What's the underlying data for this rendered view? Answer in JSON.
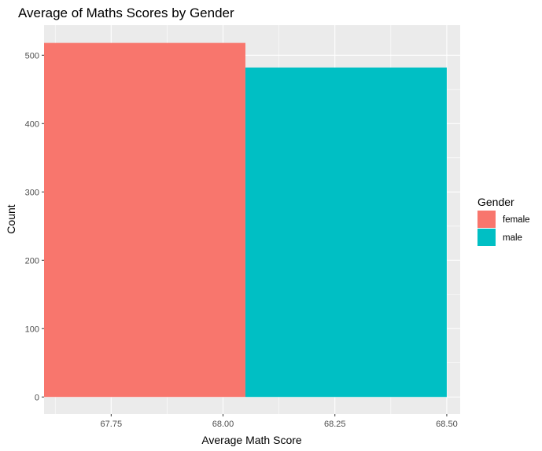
{
  "chart_data": {
    "type": "bar",
    "title": "Average of Maths Scores by Gender",
    "xlabel": "Average Math Score",
    "ylabel": "Count",
    "xlim": [
      67.6,
      68.53
    ],
    "ylim": [
      -25,
      544
    ],
    "x_ticks": [
      {
        "value": 67.75,
        "label": "67.75"
      },
      {
        "value": 68.0,
        "label": "68.00"
      },
      {
        "value": 68.25,
        "label": "68.25"
      },
      {
        "value": 68.5,
        "label": "68.50"
      }
    ],
    "y_ticks": [
      {
        "value": 0,
        "label": "0"
      },
      {
        "value": 100,
        "label": "100"
      },
      {
        "value": 200,
        "label": "200"
      },
      {
        "value": 300,
        "label": "300"
      },
      {
        "value": 400,
        "label": "400"
      },
      {
        "value": 500,
        "label": "500"
      }
    ],
    "grid": true,
    "legend": {
      "title": "Gender",
      "position": "right"
    },
    "series": [
      {
        "name": "female",
        "color": "#F8766D",
        "x_start": 67.6,
        "x_end": 68.05,
        "value": 518
      },
      {
        "name": "male",
        "color": "#00BFC4",
        "x_start": 68.05,
        "x_end": 68.5,
        "value": 482
      }
    ]
  }
}
